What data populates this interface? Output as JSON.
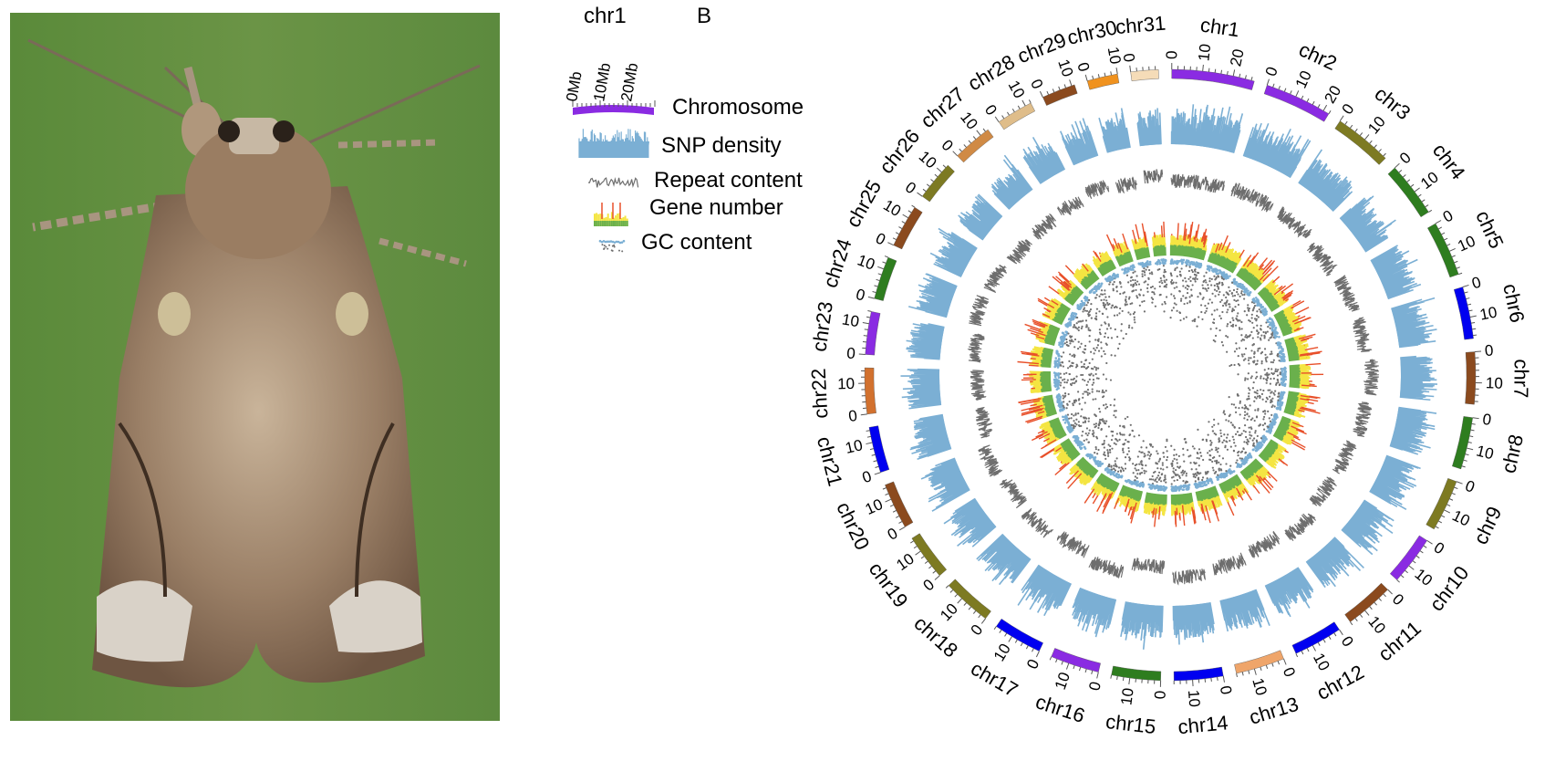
{
  "panel_a": {
    "subject": "moth photograph",
    "background_color": "#5f8a3c"
  },
  "panel_b": {
    "panel_letter": "B",
    "legend": {
      "example_chromosome": "chr1",
      "scale_labels": [
        "0Mb",
        "10Mb",
        "20Mb"
      ],
      "tracks": [
        {
          "label": "Chromosome",
          "color": "#8a2be2"
        },
        {
          "label": "SNP density",
          "color": "#7bafd4"
        },
        {
          "label": "Repeat content",
          "color": "#6e6e6e"
        },
        {
          "label": "Gene number",
          "colors": [
            "#6ab04c",
            "#f4e542",
            "#e8502a"
          ]
        },
        {
          "label": "GC content",
          "colors": [
            "#7bafd4",
            "#707070"
          ]
        }
      ]
    },
    "tick_labels": [
      "0",
      "10",
      "20"
    ],
    "chromosomes": [
      {
        "name": "chr1",
        "color": "#8a2be2",
        "length_mb": 27
      },
      {
        "name": "chr2",
        "color": "#8a2be2",
        "length_mb": 22
      },
      {
        "name": "chr3",
        "color": "#7d7a22",
        "length_mb": 19
      },
      {
        "name": "chr4",
        "color": "#2e7d1f",
        "length_mb": 18
      },
      {
        "name": "chr5",
        "color": "#2e7d1f",
        "length_mb": 18
      },
      {
        "name": "chr6",
        "color": "#0000f0",
        "length_mb": 17
      },
      {
        "name": "chr7",
        "color": "#8b4a1e",
        "length_mb": 17
      },
      {
        "name": "chr8",
        "color": "#2e7d1f",
        "length_mb": 17
      },
      {
        "name": "chr9",
        "color": "#7d7a22",
        "length_mb": 17
      },
      {
        "name": "chr10",
        "color": "#8a2be2",
        "length_mb": 16
      },
      {
        "name": "chr11",
        "color": "#8b4a1e",
        "length_mb": 16
      },
      {
        "name": "chr12",
        "color": "#0000f0",
        "length_mb": 16
      },
      {
        "name": "chr13",
        "color": "#efa56a",
        "length_mb": 16
      },
      {
        "name": "chr14",
        "color": "#0000f0",
        "length_mb": 16
      },
      {
        "name": "chr15",
        "color": "#2e7d1f",
        "length_mb": 16
      },
      {
        "name": "chr16",
        "color": "#8a2be2",
        "length_mb": 16
      },
      {
        "name": "chr17",
        "color": "#0000f0",
        "length_mb": 16
      },
      {
        "name": "chr18",
        "color": "#7d7a22",
        "length_mb": 16
      },
      {
        "name": "chr19",
        "color": "#7d7a22",
        "length_mb": 15
      },
      {
        "name": "chr20",
        "color": "#8b4a1e",
        "length_mb": 15
      },
      {
        "name": "chr21",
        "color": "#0000f0",
        "length_mb": 15
      },
      {
        "name": "chr22",
        "color": "#d2712e",
        "length_mb": 15
      },
      {
        "name": "chr23",
        "color": "#8a2be2",
        "length_mb": 14
      },
      {
        "name": "chr24",
        "color": "#2e7d1f",
        "length_mb": 14
      },
      {
        "name": "chr25",
        "color": "#8b4a1e",
        "length_mb": 14
      },
      {
        "name": "chr26",
        "color": "#7d7a22",
        "length_mb": 13
      },
      {
        "name": "chr27",
        "color": "#d08a45",
        "length_mb": 13
      },
      {
        "name": "chr28",
        "color": "#dfbd8a",
        "length_mb": 12
      },
      {
        "name": "chr29",
        "color": "#8b4a1e",
        "length_mb": 11
      },
      {
        "name": "chr30",
        "color": "#f0921e",
        "length_mb": 10
      },
      {
        "name": "chr31",
        "color": "#f5dcb8",
        "length_mb": 9
      }
    ]
  }
}
